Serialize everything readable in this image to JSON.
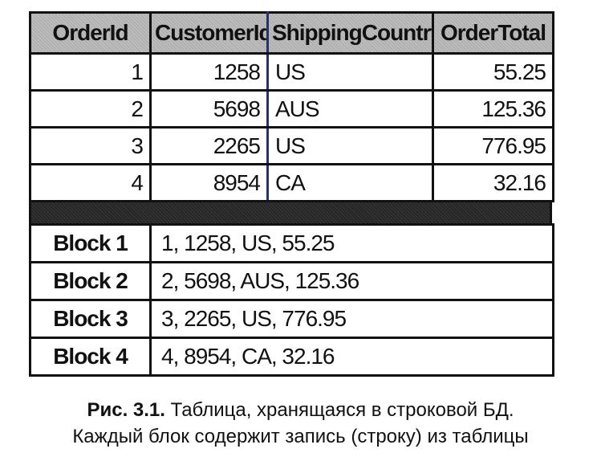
{
  "orders_table": {
    "headers": [
      "OrderId",
      "CustomerId",
      "ShippingCountry",
      "OrderTotal"
    ],
    "rows": [
      [
        "1",
        "1258",
        "US",
        "55.25"
      ],
      [
        "2",
        "5698",
        "AUS",
        "125.36"
      ],
      [
        "3",
        "2265",
        "US",
        "776.95"
      ],
      [
        "4",
        "8954",
        "CA",
        "32.16"
      ]
    ]
  },
  "blocks_table": {
    "rows": [
      {
        "label": "Block 1",
        "value": "1, 1258, US, 55.25"
      },
      {
        "label": "Block 2",
        "value": "2, 5698, AUS, 125.36"
      },
      {
        "label": "Block 3",
        "value": "3, 2265, US, 776.95"
      },
      {
        "label": "Block 4",
        "value": "4, 8954, CA, 32.16"
      }
    ]
  },
  "caption": {
    "label": "Рис. 3.1.",
    "line1": "Таблица, хранящаяся в строковой БД.",
    "line2": "Каждый блок содержит запись (строку) из таблицы"
  }
}
